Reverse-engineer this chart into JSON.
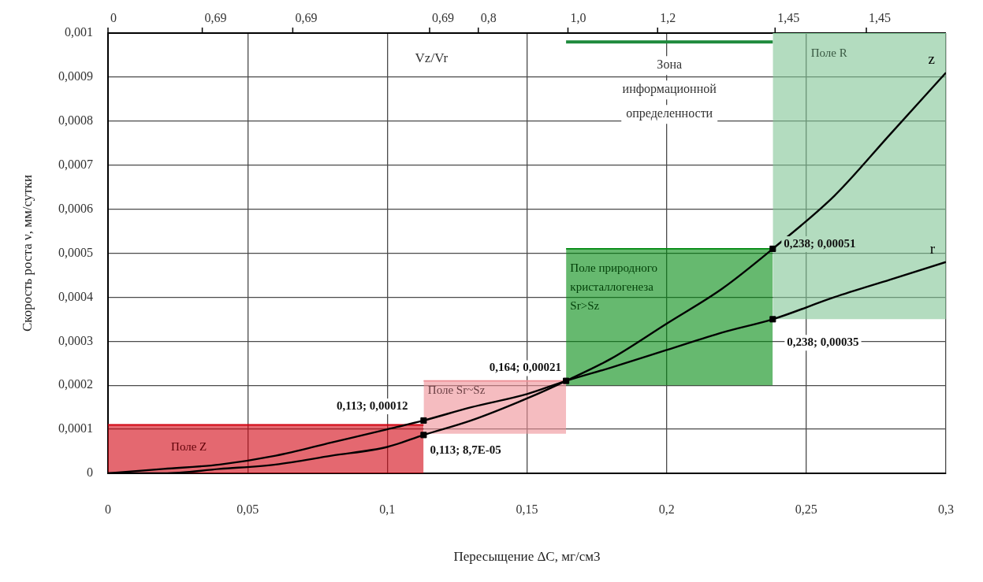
{
  "chart_data": {
    "type": "line",
    "xlabel": "Пересыщение ΔC, мг/см3",
    "ylabel": "Скорость роста ν, мм/сутки",
    "xlim": [
      0,
      0.3
    ],
    "xticks": [
      0,
      {
        "value": 0.05,
        "label": "0,05"
      },
      {
        "value": 0.1,
        "label": "0,1"
      },
      {
        "value": 0.15,
        "label": "0,15"
      },
      {
        "value": 0.2,
        "label": "0,2"
      },
      {
        "value": 0.25,
        "label": "0,25"
      },
      {
        "value": 0.3,
        "label": "0,3"
      }
    ],
    "ylim": [
      0,
      0.001
    ],
    "yticks": [
      0,
      {
        "value": 0.0001,
        "label": "0,0001"
      },
      {
        "value": 0.0002,
        "label": "0,0002"
      },
      {
        "value": 0.0003,
        "label": "0,0003"
      },
      {
        "value": 0.0004,
        "label": "0,0004"
      },
      {
        "value": 0.0005,
        "label": "0,0005"
      },
      {
        "value": 0.0006,
        "label": "0,0006"
      },
      {
        "value": 0.0007,
        "label": "0,0007"
      },
      {
        "value": 0.0008,
        "label": "0,0008"
      },
      {
        "value": 0.0009,
        "label": "0,0009"
      },
      {
        "value": 0.001,
        "label": "0,001"
      }
    ],
    "grid": true,
    "line_style": "solid",
    "series": [
      {
        "name": "Поле Z",
        "color": "#d20311",
        "marker": "none",
        "x": [
          0,
          0.113
        ],
        "values": [
          0.00011,
          0.00011
        ],
        "lower": [
          0,
          0
        ],
        "upper": [
          0.00011,
          0.00011
        ]
      },
      {
        "name": "Поле Sr~Sz",
        "color": "#ee8f96",
        "marker": "none",
        "x": [
          0.113,
          0.164
        ],
        "values": [
          0.00021,
          0.00021
        ],
        "lower": [
          9e-05,
          9e-05
        ],
        "upper": [
          0.00021,
          0.00021
        ]
      },
      {
        "name": "Поле природного кристаллогенеза Sr>Sz",
        "color": "#008a0f",
        "marker": "none",
        "x": [
          0.164,
          0.238
        ],
        "values": [
          0.00051,
          0.00051
        ],
        "lower": [
          0.0002,
          0.0002
        ],
        "upper": [
          0.00051,
          0.00051
        ]
      },
      {
        "name": "Поле R",
        "color": "#80c594",
        "marker": "none",
        "x": [
          0.238,
          0.3
        ],
        "values": [
          0.001,
          0.001
        ],
        "lower": [
          0.00035,
          0.00035
        ],
        "upper": [
          0.001,
          0.001
        ]
      },
      {
        "name": "z",
        "color": "#000000",
        "marker": "none",
        "x": [
          0,
          0.02,
          0.04,
          0.06,
          0.08,
          0.1,
          0.113,
          0.13,
          0.15,
          0.164,
          0.18,
          0.2,
          0.22,
          0.238,
          0.26,
          0.28,
          0.3
        ],
        "values": [
          0,
          0,
          1e-05,
          2e-05,
          4e-05,
          6e-05,
          8.7e-05,
          0.00012,
          0.00017,
          0.00021,
          0.00026,
          0.00034,
          0.00042,
          0.00051,
          0.00063,
          0.00077,
          0.00091
        ]
      },
      {
        "name": "r",
        "color": "#000000",
        "marker": "none",
        "x": [
          0,
          0.02,
          0.04,
          0.06,
          0.08,
          0.1,
          0.113,
          0.13,
          0.15,
          0.164,
          0.18,
          0.2,
          0.22,
          0.238,
          0.26,
          0.28,
          0.3
        ],
        "values": [
          0,
          1e-05,
          2e-05,
          4e-05,
          7e-05,
          0.0001,
          0.00012,
          0.00015,
          0.00018,
          0.00021,
          0.00024,
          0.00028,
          0.00032,
          0.00035,
          0.0004,
          0.00044,
          0.00048
        ]
      },
      {
        "name": "Зона информационной определенности",
        "color": "#1e8a3c",
        "marker": "none",
        "x": [
          0.164,
          0.238
        ],
        "values": [
          0.00098,
          0.00098
        ]
      },
      {
        "type": "scatter",
        "color": "#000000",
        "marker": "square",
        "x": [
          0.113,
          0.113,
          0.164,
          0.238,
          0.238
        ],
        "values": [
          0.00012,
          8.7e-05,
          0.00021,
          0.00051,
          0.00035
        ],
        "value_labels": [
          "0,113; 0,00012",
          "0,113; 8,7E-05",
          "0,164; 0,00021",
          "0,238; 0,00051",
          "0,238; 0,00035"
        ]
      }
    ],
    "annotations": [
      "0",
      "0,69",
      "0,69",
      "0,69",
      "0,8",
      "1,0",
      "1,2",
      "1,45",
      "1,45",
      "Vz/Vr"
    ]
  }
}
